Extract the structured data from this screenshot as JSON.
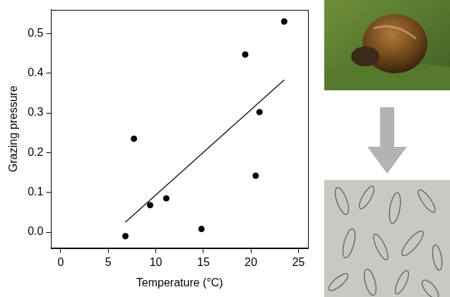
{
  "chart_data": {
    "type": "scatter",
    "x_label": "Temperature (°C)",
    "y_label": "Grazing pressure",
    "series": [
      {
        "type": "scatter",
        "marker": "circle",
        "color": "#000000",
        "x": [
          6.8,
          7.7,
          9.4,
          11.1,
          14.8,
          19.4,
          20.5,
          20.9,
          23.5
        ],
        "values": [
          -0.01,
          0.235,
          0.068,
          0.085,
          0.008,
          0.447,
          0.142,
          0.302,
          0.53
        ]
      },
      {
        "type": "line",
        "line_style": "solid",
        "color": "#000000",
        "x": [
          6.8,
          23.5
        ],
        "values": [
          0.025,
          0.383
        ]
      }
    ],
    "xlim": [
      -1,
      26
    ],
    "xticks": [
      0,
      5,
      10,
      15,
      20,
      25
    ],
    "ylim": [
      -0.04,
      0.56
    ],
    "yticks": [
      {
        "value": 0,
        "label": "0.0"
      },
      0.1,
      0.2,
      0.3,
      0.4,
      0.5
    ],
    "grid": false
  }
}
